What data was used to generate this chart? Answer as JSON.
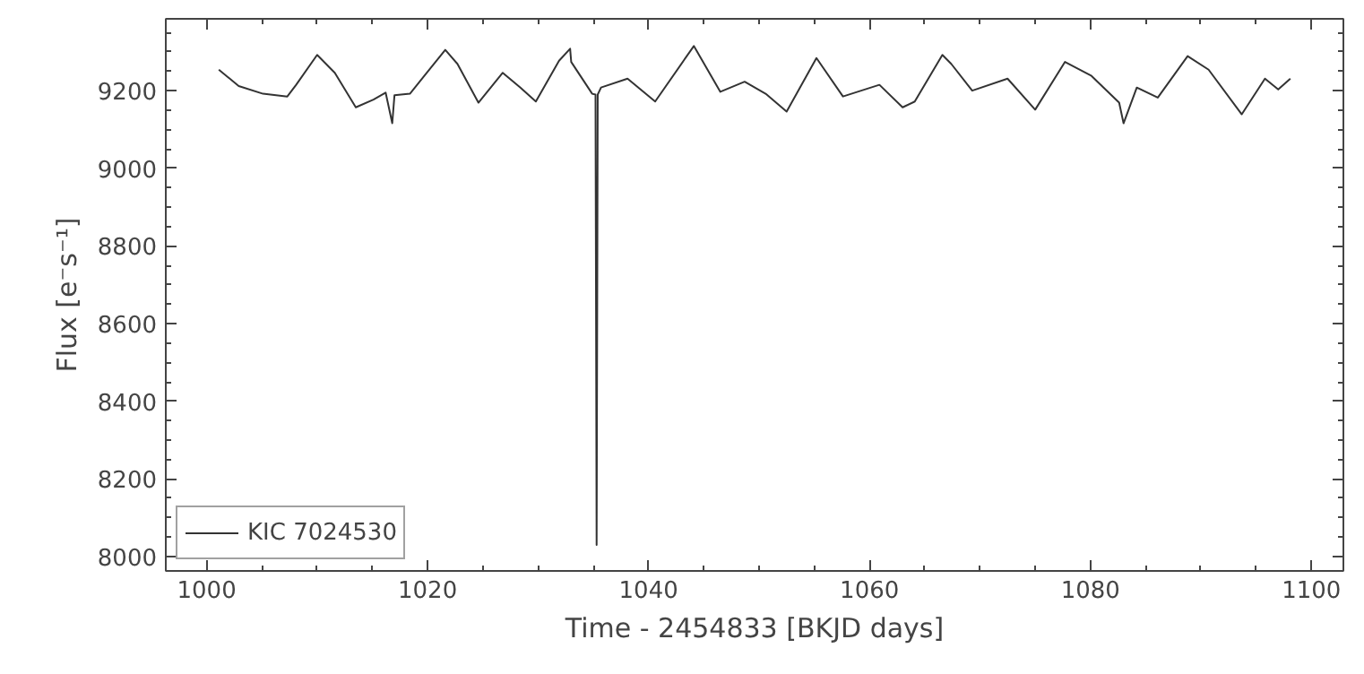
{
  "chart_data": {
    "type": "line",
    "xlabel": "Time - 2454833 [BKJD days]",
    "ylabel": "Flux [e⁻s⁻¹]",
    "x": [
      1001.1,
      1002.9,
      1005.1,
      1007.3,
      1008.1,
      1010.0,
      1011.6,
      1013.5,
      1015.1,
      1016.2,
      1016.8,
      1017.0,
      1018.4,
      1019.7,
      1021.6,
      1022.7,
      1024.6,
      1026.8,
      1028.4,
      1029.8,
      1031.9,
      1032.9,
      1033.0,
      1034.9,
      1035.2,
      1035.3,
      1035.4,
      1035.7,
      1038.1,
      1040.6,
      1044.1,
      1046.5,
      1048.7,
      1050.6,
      1052.5,
      1055.2,
      1057.6,
      1060.9,
      1063.0,
      1064.1,
      1066.6,
      1067.4,
      1069.3,
      1072.5,
      1075.0,
      1077.7,
      1080.1,
      1082.6,
      1083.0,
      1084.2,
      1086.1,
      1088.8,
      1090.7,
      1093.7,
      1095.8,
      1097.0,
      1098.1
    ],
    "series": [
      {
        "name": "KIC 7024530",
        "color": "#333333",
        "values": [
          9254,
          9212,
          9192,
          9185,
          9215,
          9292,
          9246,
          9157,
          9177,
          9195,
          9116,
          9188,
          9192,
          9238,
          9305,
          9269,
          9169,
          9246,
          9208,
          9172,
          9277,
          9308,
          9274,
          9192,
          9190,
          8030,
          9190,
          9208,
          9231,
          9172,
          9315,
          9197,
          9223,
          9192,
          9146,
          9284,
          9185,
          9215,
          9157,
          9172,
          9292,
          9269,
          9200,
          9231,
          9151,
          9274,
          9238,
          9169,
          9116,
          9208,
          9182,
          9289,
          9254,
          9139,
          9231,
          9203,
          9231
        ]
      }
    ],
    "xlim": [
      996.3,
      1102.9
    ],
    "ylim": [
      7963,
      9385
    ],
    "xticks": [
      1000,
      1020,
      1040,
      1060,
      1080,
      1100
    ],
    "yticks": [
      8000,
      8200,
      8400,
      8600,
      8800,
      9000,
      9200
    ],
    "grid": false,
    "legend": "bottom left",
    "marker": "none",
    "line_style": "solid"
  }
}
